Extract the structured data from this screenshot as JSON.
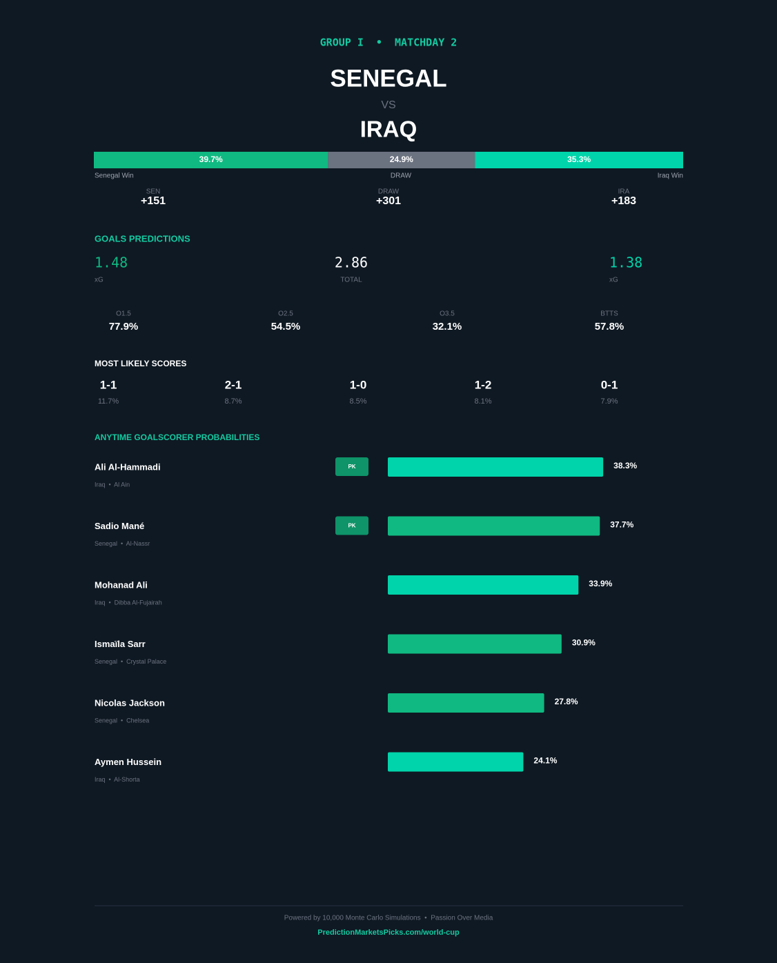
{
  "header": {
    "group": "GROUP I  •  MATCHDAY 2",
    "team_home": "SENEGAL",
    "vs": "VS",
    "team_away": "IRAQ"
  },
  "outcome_bar": {
    "values": [
      39.7,
      24.9,
      35.3
    ],
    "value_labels": [
      "39.7%",
      "24.9%",
      "35.3%"
    ],
    "labels": [
      "Senegal Win",
      "DRAW",
      "Iraq Win"
    ],
    "colors": [
      "#10b981",
      "#6b7280",
      "#00d4aa"
    ]
  },
  "odds": [
    {
      "label": "SEN",
      "value": "+151"
    },
    {
      "label": "DRAW",
      "value": "+301"
    },
    {
      "label": "IRA",
      "value": "+183"
    }
  ],
  "goals": {
    "title": "GOALS PREDICTIONS",
    "home_xg": "1.48",
    "home_label": "xG",
    "total": "2.86",
    "total_label": "TOTAL",
    "away_xg": "1.38",
    "away_label": "xG"
  },
  "markets": [
    {
      "label": "O1.5",
      "value": "77.9%"
    },
    {
      "label": "O2.5",
      "value": "54.5%"
    },
    {
      "label": "O3.5",
      "value": "32.1%"
    },
    {
      "label": "BTTS",
      "value": "57.8%"
    }
  ],
  "scores": {
    "title": "MOST LIKELY SCORES",
    "items": [
      {
        "score": "1-1",
        "probability": "11.7%"
      },
      {
        "score": "2-1",
        "probability": "8.7%"
      },
      {
        "score": "1-0",
        "probability": "8.5%"
      },
      {
        "score": "1-2",
        "probability": "8.1%"
      },
      {
        "score": "0-1",
        "probability": "7.9%"
      }
    ]
  },
  "goalscorers": {
    "title": "ANYTIME GOALSCORER PROBABILITIES",
    "players": [
      {
        "name": "Ali Al-Hammadi",
        "team": "Iraq  •  Al Ain",
        "badge": "PK",
        "value": 38.3,
        "value_label": "38.3%",
        "color": "#00d4aa"
      },
      {
        "name": "Sadio Mané",
        "team": "Senegal  •  Al-Nassr",
        "badge": "PK",
        "value": 37.7,
        "value_label": "37.7%",
        "color": "#10b981"
      },
      {
        "name": "Mohanad Ali",
        "team": "Iraq  •  Dibba Al-Fujairah",
        "value": 33.9,
        "value_label": "33.9%",
        "color": "#00d4aa"
      },
      {
        "name": "Ismaïla Sarr",
        "team": "Senegal  •  Crystal Palace",
        "value": 30.9,
        "value_label": "30.9%",
        "color": "#10b981"
      },
      {
        "name": "Nicolas Jackson",
        "team": "Senegal  •  Chelsea",
        "value": 27.8,
        "value_label": "27.8%",
        "color": "#10b981"
      },
      {
        "name": "Aymen Hussein",
        "team": "Iraq  •  Al-Shorta",
        "value": 24.1,
        "value_label": "24.1%",
        "color": "#00d4aa"
      }
    ]
  },
  "footer": {
    "note": "Powered by 10,000 Monte Carlo Simulations  •  Passion Over Media",
    "link": "PredictionMarketsPicks.com/world-cup"
  }
}
